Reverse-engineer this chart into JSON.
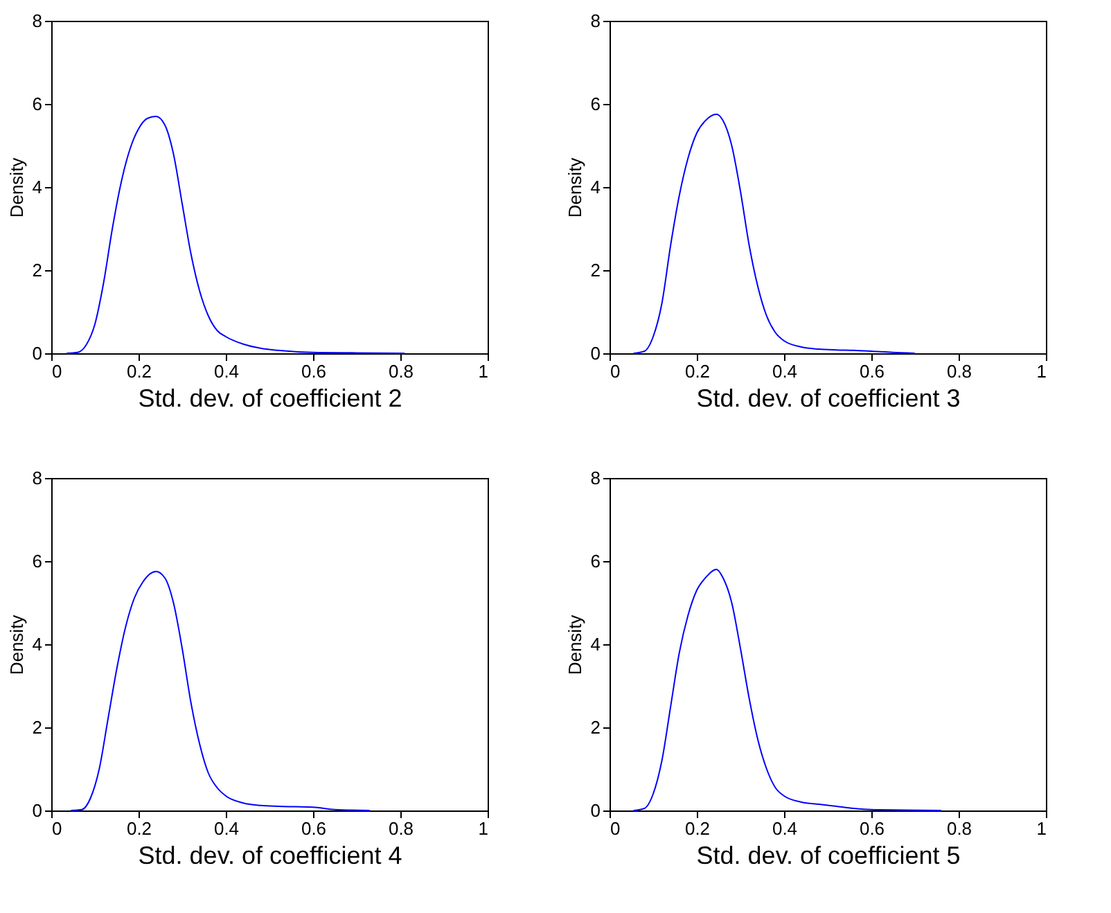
{
  "chart_data": [
    {
      "type": "line",
      "xlabel": "Std. dev. of coefficient 2",
      "ylabel": "Density",
      "xlim": [
        0,
        1
      ],
      "ylim": [
        0,
        8
      ],
      "xticks": [
        0,
        0.2,
        0.4,
        0.6,
        0.8,
        1
      ],
      "yticks": [
        0,
        2,
        4,
        6,
        8
      ],
      "grid": false,
      "series": [
        {
          "color": "#0000ff",
          "x": [
            0.035,
            0.06,
            0.08,
            0.1,
            0.12,
            0.14,
            0.16,
            0.18,
            0.2,
            0.22,
            0.24,
            0.26,
            0.28,
            0.3,
            0.32,
            0.34,
            0.36,
            0.38,
            0.4,
            0.44,
            0.48,
            0.52,
            0.6,
            0.7,
            0.81
          ],
          "values": [
            0,
            0.02,
            0.2,
            0.7,
            1.7,
            3.0,
            4.1,
            4.9,
            5.4,
            5.65,
            5.7,
            5.5,
            4.8,
            3.6,
            2.4,
            1.5,
            0.9,
            0.55,
            0.4,
            0.22,
            0.12,
            0.07,
            0.02,
            0.01,
            0
          ]
        }
      ]
    },
    {
      "type": "line",
      "xlabel": "Std. dev. of coefficient 3",
      "ylabel": "Density",
      "xlim": [
        0,
        1
      ],
      "ylim": [
        0,
        8
      ],
      "xticks": [
        0,
        0.2,
        0.4,
        0.6,
        0.8,
        1
      ],
      "yticks": [
        0,
        2,
        4,
        6,
        8
      ],
      "grid": false,
      "series": [
        {
          "color": "#0000ff",
          "x": [
            0.055,
            0.08,
            0.1,
            0.12,
            0.14,
            0.16,
            0.18,
            0.2,
            0.22,
            0.245,
            0.26,
            0.28,
            0.3,
            0.32,
            0.34,
            0.36,
            0.38,
            0.4,
            0.44,
            0.48,
            0.52,
            0.56,
            0.6,
            0.65,
            0.7
          ],
          "values": [
            0,
            0.05,
            0.4,
            1.2,
            2.6,
            3.8,
            4.7,
            5.3,
            5.6,
            5.75,
            5.6,
            5.0,
            3.9,
            2.6,
            1.6,
            0.9,
            0.5,
            0.3,
            0.15,
            0.1,
            0.08,
            0.07,
            0.05,
            0.02,
            0
          ]
        }
      ]
    },
    {
      "type": "line",
      "xlabel": "Std. dev. of coefficient 4",
      "ylabel": "Density",
      "xlim": [
        0,
        1
      ],
      "ylim": [
        0,
        8
      ],
      "xticks": [
        0,
        0.2,
        0.4,
        0.6,
        0.8,
        1
      ],
      "yticks": [
        0,
        2,
        4,
        6,
        8
      ],
      "grid": false,
      "series": [
        {
          "color": "#0000ff",
          "x": [
            0.045,
            0.07,
            0.09,
            0.11,
            0.13,
            0.15,
            0.17,
            0.19,
            0.21,
            0.24,
            0.26,
            0.28,
            0.3,
            0.32,
            0.34,
            0.36,
            0.38,
            0.4,
            0.44,
            0.48,
            0.52,
            0.56,
            0.6,
            0.65,
            0.73
          ],
          "values": [
            0,
            0.02,
            0.3,
            1.0,
            2.2,
            3.4,
            4.4,
            5.1,
            5.5,
            5.75,
            5.6,
            5.0,
            3.9,
            2.6,
            1.6,
            0.9,
            0.55,
            0.35,
            0.18,
            0.12,
            0.1,
            0.09,
            0.08,
            0.02,
            0
          ]
        }
      ]
    },
    {
      "type": "line",
      "xlabel": "Std. dev. of coefficient 5",
      "ylabel": "Density",
      "xlim": [
        0,
        1
      ],
      "ylim": [
        0,
        8
      ],
      "xticks": [
        0,
        0.2,
        0.4,
        0.6,
        0.8,
        1
      ],
      "yticks": [
        0,
        2,
        4,
        6,
        8
      ],
      "grid": false,
      "series": [
        {
          "color": "#0000ff",
          "x": [
            0.055,
            0.08,
            0.1,
            0.12,
            0.14,
            0.16,
            0.18,
            0.2,
            0.22,
            0.245,
            0.26,
            0.28,
            0.3,
            0.32,
            0.34,
            0.36,
            0.38,
            0.4,
            0.44,
            0.48,
            0.52,
            0.56,
            0.6,
            0.68,
            0.76
          ],
          "values": [
            0,
            0.05,
            0.4,
            1.2,
            2.5,
            3.8,
            4.7,
            5.3,
            5.6,
            5.8,
            5.6,
            5.0,
            3.9,
            2.7,
            1.7,
            1.0,
            0.55,
            0.35,
            0.2,
            0.15,
            0.1,
            0.05,
            0.02,
            0.01,
            0
          ]
        }
      ]
    }
  ]
}
